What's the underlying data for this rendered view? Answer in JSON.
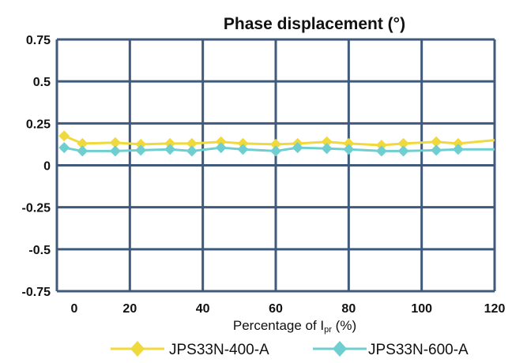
{
  "chart_data": {
    "type": "line",
    "title": "Phase displacement (°)",
    "xlabel": {
      "main": "Percentage of I",
      "sub": "pr",
      "tail": " (%)"
    },
    "ylabel": "",
    "xlim": [
      0,
      120
    ],
    "ylim": [
      -0.75,
      0.75
    ],
    "x_ticks": [
      0,
      20,
      40,
      60,
      80,
      100,
      120
    ],
    "y_ticks": [
      0.75,
      0.5,
      0.25,
      0,
      -0.25,
      -0.5,
      -0.75
    ],
    "y_tick_labels": [
      "0.75",
      "0.5",
      "0.25",
      "0",
      "-0.25",
      "-0.5",
      "-0.75"
    ],
    "grid": true,
    "legend_position": "bottom",
    "series": [
      {
        "name": "JPS33N-400-A",
        "color": "#f0d93c",
        "marker": "diamond",
        "points": [
          [
            2,
            0.175
          ],
          [
            7,
            0.13
          ],
          [
            16,
            0.135
          ],
          [
            23,
            0.125
          ],
          [
            31,
            0.13
          ],
          [
            37,
            0.13
          ],
          [
            45,
            0.14
          ],
          [
            51,
            0.13
          ],
          [
            60,
            0.125
          ],
          [
            66,
            0.13
          ],
          [
            74,
            0.14
          ],
          [
            80,
            0.13
          ],
          [
            89,
            0.12
          ],
          [
            95,
            0.13
          ],
          [
            104,
            0.14
          ],
          [
            110,
            0.13
          ],
          [
            120,
            0.15
          ]
        ]
      },
      {
        "name": "JPS33N-600-A",
        "color": "#6fcfd0",
        "marker": "diamond",
        "points": [
          [
            2,
            0.105
          ],
          [
            7,
            0.085
          ],
          [
            16,
            0.085
          ],
          [
            23,
            0.09
          ],
          [
            31,
            0.095
          ],
          [
            37,
            0.085
          ],
          [
            45,
            0.105
          ],
          [
            51,
            0.095
          ],
          [
            60,
            0.085
          ],
          [
            66,
            0.105
          ],
          [
            74,
            0.1
          ],
          [
            80,
            0.095
          ],
          [
            89,
            0.085
          ],
          [
            95,
            0.085
          ],
          [
            104,
            0.09
          ],
          [
            110,
            0.095
          ],
          [
            120,
            0.095
          ]
        ]
      }
    ]
  }
}
